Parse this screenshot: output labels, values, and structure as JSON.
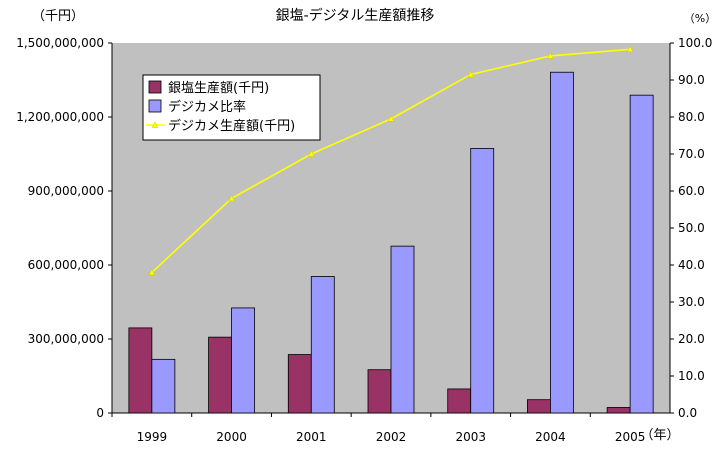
{
  "chart_data": {
    "type": "bar",
    "title": "銀塩-デジタル生産額推移",
    "left_unit": "（千円）",
    "right_unit": "（%）",
    "x_unit": "（年）",
    "categories": [
      "1999",
      "2000",
      "2001",
      "2002",
      "2003",
      "2004",
      "2005"
    ],
    "left_axis": {
      "ylim": [
        0,
        1500000000
      ],
      "ticks": [
        "0",
        "300,000,000",
        "600,000,000",
        "900,000,000",
        "1,200,000,000",
        "1,500,000,000"
      ]
    },
    "right_axis": {
      "ylim": [
        0,
        100
      ],
      "ticks": [
        "0.0",
        "10.0",
        "20.0",
        "30.0",
        "40.0",
        "50.0",
        "60.0",
        "70.0",
        "80.0",
        "90.0",
        "100.0"
      ]
    },
    "series": [
      {
        "name": "銀塩生産額(千円)",
        "type": "bar",
        "axis": "right",
        "color": "#993366",
        "values": [
          23,
          20.5,
          15.8,
          11.7,
          6.5,
          3.6,
          1.5
        ]
      },
      {
        "name": "デジカメ比率",
        "type": "bar",
        "axis": "right",
        "color": "#9999ff",
        "values": [
          14.5,
          28.4,
          36.9,
          45.1,
          71.5,
          92.1,
          85.9
        ]
      },
      {
        "name": "デジカメ生産額(千円)",
        "type": "line",
        "axis": "right",
        "color": "#ffff00",
        "values": [
          38,
          58,
          70,
          79.5,
          91.5,
          96.5,
          98.3
        ]
      }
    ],
    "grid": false,
    "legend_position": "top-left inside plot",
    "plot_background": "#c0c0c0"
  },
  "colors": {
    "plot_bg": "#c0c0c0",
    "silver_bar": "#993366",
    "digital_ratio_bar": "#9999ff",
    "digital_line": "#ffff00"
  }
}
